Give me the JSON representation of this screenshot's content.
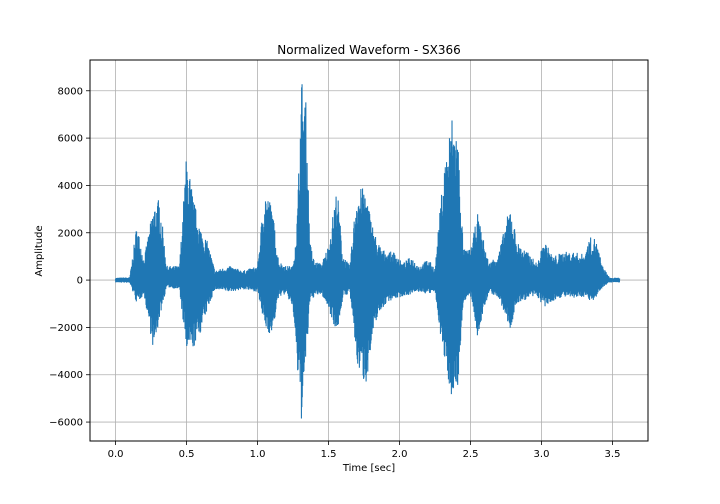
{
  "chart_data": {
    "type": "line",
    "title": "Normalized Waveform - SX366",
    "xlabel": "Time [sec]",
    "ylabel": "Amplitude",
    "xlim": [
      -0.18,
      3.75
    ],
    "ylim": [
      -6800,
      9300
    ],
    "xticks": [
      0.0,
      0.5,
      1.0,
      1.5,
      2.0,
      2.5,
      3.0,
      3.5
    ],
    "xtick_labels": [
      "0.0",
      "0.5",
      "1.0",
      "1.5",
      "2.0",
      "2.5",
      "3.0",
      "3.5"
    ],
    "yticks": [
      -6000,
      -4000,
      -2000,
      0,
      2000,
      4000,
      6000,
      8000
    ],
    "ytick_labels": [
      "−6000",
      "−4000",
      "−2000",
      "0",
      "2000",
      "4000",
      "6000",
      "8000"
    ],
    "grid": true,
    "line_color": "#1f77b4",
    "series": [
      {
        "x": [
          0.0,
          0.1,
          0.15,
          0.2,
          0.27,
          0.31,
          0.36,
          0.45,
          0.5,
          0.55,
          0.6,
          0.65,
          0.7,
          0.8,
          0.9,
          1.0,
          1.05,
          1.1,
          1.15,
          1.2,
          1.25,
          1.28,
          1.31,
          1.34,
          1.37,
          1.4,
          1.45,
          1.5,
          1.56,
          1.6,
          1.65,
          1.7,
          1.76,
          1.8,
          1.84,
          1.88,
          1.92,
          1.97,
          2.02,
          2.08,
          2.14,
          2.2,
          2.25,
          2.31,
          2.37,
          2.41,
          2.45,
          2.5,
          2.55,
          2.63,
          2.7,
          2.78,
          2.83,
          2.9,
          2.97,
          3.02,
          3.08,
          3.15,
          3.22,
          3.3,
          3.34,
          3.38,
          3.43,
          3.48,
          3.55
        ],
        "upper": [
          100,
          120,
          2400,
          900,
          3200,
          3500,
          600,
          600,
          5400,
          3400,
          2200,
          1600,
          400,
          600,
          400,
          600,
          3900,
          3200,
          800,
          600,
          600,
          2800,
          8600,
          7600,
          1600,
          800,
          700,
          1500,
          4000,
          1100,
          600,
          3900,
          3900,
          2600,
          1700,
          1300,
          1200,
          1200,
          700,
          1000,
          600,
          900,
          500,
          4700,
          7000,
          6300,
          1300,
          1300,
          2800,
          700,
          1200,
          3200,
          1600,
          1200,
          700,
          1700,
          1000,
          1200,
          1200,
          1100,
          1800,
          1800,
          600,
          100,
          100
        ],
        "lower": [
          -100,
          -120,
          -1000,
          -600,
          -3100,
          -1600,
          -300,
          -400,
          -3100,
          -2900,
          -2200,
          -1200,
          -400,
          -500,
          -400,
          -500,
          -2000,
          -2400,
          -700,
          -600,
          -1200,
          -3900,
          -6000,
          -3700,
          -900,
          -700,
          -600,
          -1200,
          -2300,
          -800,
          -500,
          -3600,
          -4500,
          -3000,
          -1600,
          -1200,
          -900,
          -800,
          -700,
          -600,
          -500,
          -600,
          -500,
          -3300,
          -5000,
          -4600,
          -900,
          -700,
          -2400,
          -500,
          -800,
          -2100,
          -1000,
          -800,
          -700,
          -1200,
          -900,
          -700,
          -800,
          -700,
          -900,
          -800,
          -300,
          -100,
          -100
        ]
      }
    ]
  }
}
